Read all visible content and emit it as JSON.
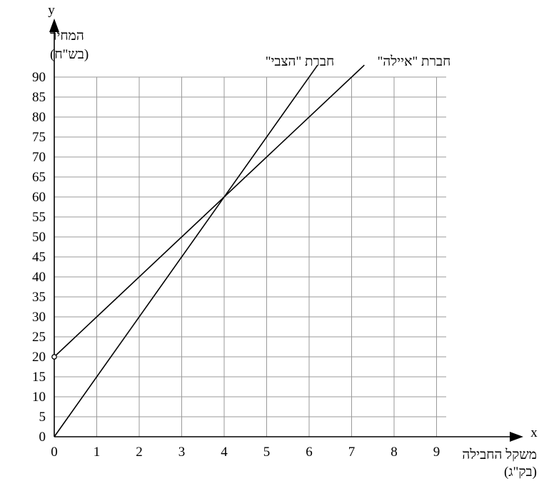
{
  "chart_data": {
    "type": "line",
    "x_axis": {
      "letter": "x",
      "label_line1": "משקל החבילה",
      "label_line2": "(בק\"ג)",
      "range": [
        0,
        9
      ],
      "ticks": [
        0,
        1,
        2,
        3,
        4,
        5,
        6,
        7,
        8,
        9
      ]
    },
    "y_axis": {
      "letter": "y",
      "label_line1": "המחיר",
      "label_line2": "(בש\"ח)",
      "range": [
        0,
        90
      ],
      "ticks": [
        0,
        5,
        10,
        15,
        20,
        25,
        30,
        35,
        40,
        45,
        50,
        55,
        60,
        65,
        70,
        75,
        80,
        85,
        90
      ]
    },
    "grid": true,
    "series": [
      {
        "name": "חברת \"הצבי\"",
        "x": [
          0,
          6.2
        ],
        "y": [
          0,
          93
        ],
        "open_start": false
      },
      {
        "name": "חברת \"איילה\"",
        "x": [
          0,
          7.3
        ],
        "y": [
          20,
          93
        ],
        "open_start": true
      }
    ]
  }
}
